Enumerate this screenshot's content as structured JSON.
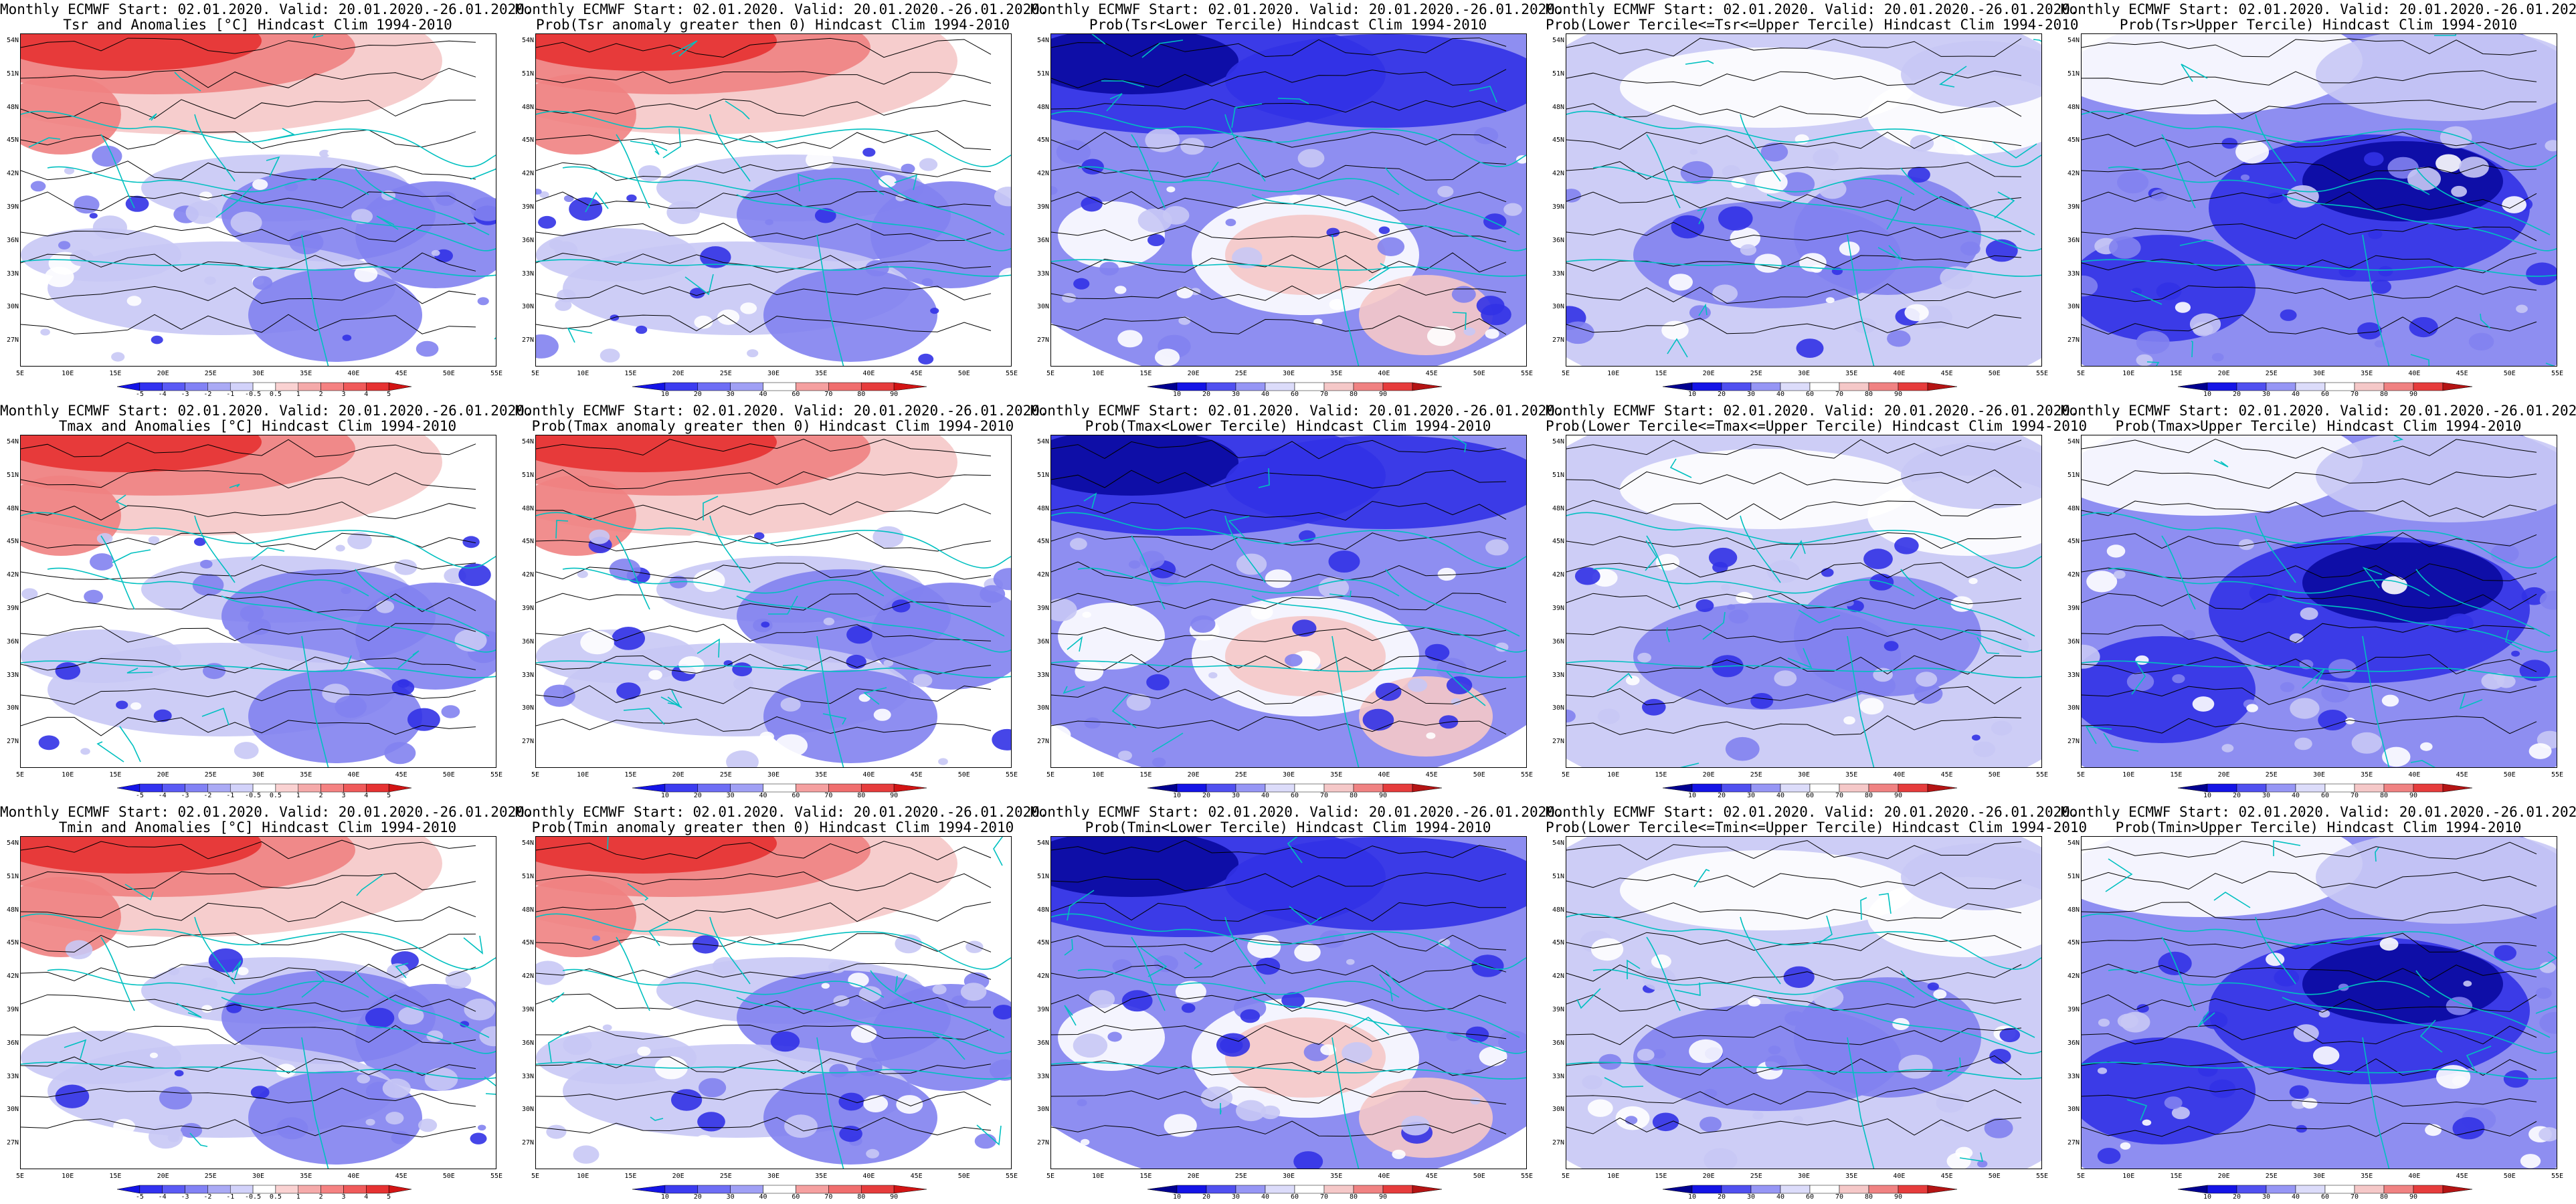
{
  "header_prefix": "Monthly ECMWF Start: 02.01.2020. Valid: 20.01.2020.-26.01.2020.",
  "panels": [
    {
      "title": "Tsr and Anomalies [°C] Hindcast Clim 1994-2010",
      "kind": "anom",
      "variable": "Tsr",
      "overlay": "normal"
    },
    {
      "title": "Prob(Tsr anomaly greater then 0) Hindcast Clim 1994-2010",
      "kind": "prob",
      "variable": "Tsr",
      "overlay": "normal"
    },
    {
      "title": "Prob(Tsr<Lower Tercile) Hindcast Clim 1994-2010",
      "kind": "prob",
      "variable": "Tsr",
      "overlay": "inverted"
    },
    {
      "title": "Prob(Lower Tercile<=Tsr<=Upper Tercile) Hindcast Clim 1994-2010",
      "kind": "prob",
      "variable": "Tsr",
      "overlay": "middle"
    },
    {
      "title": "Prob(Tsr>Upper Tercile) Hindcast Clim 1994-2010",
      "kind": "prob",
      "variable": "Tsr",
      "overlay": "upper"
    },
    {
      "title": "Tmax and Anomalies [°C] Hindcast Clim 1994-2010",
      "kind": "anom",
      "variable": "Tmax",
      "overlay": "normal"
    },
    {
      "title": "Prob(Tmax anomaly greater then 0) Hindcast Clim 1994-2010",
      "kind": "prob",
      "variable": "Tmax",
      "overlay": "normal"
    },
    {
      "title": "Prob(Tmax<Lower Tercile) Hindcast Clim 1994-2010",
      "kind": "prob",
      "variable": "Tmax",
      "overlay": "inverted"
    },
    {
      "title": "Prob(Lower Tercile<=Tmax<=Upper Tercile) Hindcast Clim 1994-2010",
      "kind": "prob",
      "variable": "Tmax",
      "overlay": "middle"
    },
    {
      "title": "Prob(Tmax>Upper Tercile) Hindcast Clim 1994-2010",
      "kind": "prob",
      "variable": "Tmax",
      "overlay": "upper"
    },
    {
      "title": "Tmin and Anomalies [°C] Hindcast Clim 1994-2010",
      "kind": "anom",
      "variable": "Tmin",
      "overlay": "normal"
    },
    {
      "title": "Prob(Tmin anomaly greater then 0) Hindcast Clim 1994-2010",
      "kind": "prob",
      "variable": "Tmin",
      "overlay": "normal"
    },
    {
      "title": "Prob(Tmin<Lower Tercile) Hindcast Clim 1994-2010",
      "kind": "prob",
      "variable": "Tmin",
      "overlay": "inverted"
    },
    {
      "title": "Prob(Lower Tercile<=Tmin<=Upper Tercile) Hindcast Clim 1994-2010",
      "kind": "prob",
      "variable": "Tmin",
      "overlay": "middle"
    },
    {
      "title": "Prob(Tmin>Upper Tercile) Hindcast Clim 1994-2010",
      "kind": "prob",
      "variable": "Tmin",
      "overlay": "upper"
    }
  ],
  "lat_labels": [
    "54N",
    "51N",
    "48N",
    "45N",
    "42N",
    "39N",
    "36N",
    "33N",
    "30N",
    "27N"
  ],
  "lon_labels": [
    "5E",
    "10E",
    "15E",
    "20E",
    "25E",
    "30E",
    "35E",
    "40E",
    "45E",
    "50E",
    "55E"
  ],
  "colorbars": {
    "anom": {
      "ticks": [
        "-5",
        "-4",
        "-3",
        "-2",
        "-1",
        "-0.5",
        "0.5",
        "1",
        "2",
        "3",
        "4",
        "5"
      ],
      "colors": [
        "#1414e6",
        "#3232f0",
        "#5a5af5",
        "#8282f5",
        "#aaaaf5",
        "#d2d2fa",
        "#ffffff",
        "#fad2d2",
        "#f5aaaa",
        "#f58282",
        "#f05a5a",
        "#e63232",
        "#d21414"
      ]
    },
    "prob": {
      "ticks": [
        "10",
        "20",
        "30",
        "40",
        "60",
        "70",
        "80",
        "90"
      ],
      "colors": [
        "#1414e6",
        "#3c3cf0",
        "#6e6ef5",
        "#a0a0f5",
        "#ffffff",
        "#f5a0a0",
        "#f06e6e",
        "#e63c3c",
        "#d21414"
      ]
    },
    "tercile": {
      "ticks": [
        "10",
        "20",
        "30",
        "40",
        "60",
        "70",
        "80",
        "90"
      ],
      "colors": [
        "#000090",
        "#1414e6",
        "#5050f0",
        "#9696f5",
        "#dcdcfa",
        "#ffffff",
        "#f5c8c8",
        "#f08282",
        "#e63c3c",
        "#b41414"
      ]
    },
    "upper": {
      "ticks": [
        "10",
        "20",
        "30",
        "40",
        "60",
        "70",
        "80",
        "90"
      ],
      "colors": [
        "#000090",
        "#1414e6",
        "#5050f0",
        "#9696f5",
        "#dcdcfa",
        "#ffffff",
        "#f5c8c8",
        "#f08282",
        "#e63c3c",
        "#b41414"
      ]
    }
  },
  "map_colors": {
    "coast": "#00c0c0",
    "contour": "#000000",
    "warm_strong": "#e63232",
    "warm_mid": "#f08282",
    "warm_light": "#f5c8c8",
    "cold_light": "#c8c8f5",
    "cold_mid": "#8282f0",
    "cold_strong": "#3232e6",
    "cold_deep": "#0a0aa0"
  }
}
